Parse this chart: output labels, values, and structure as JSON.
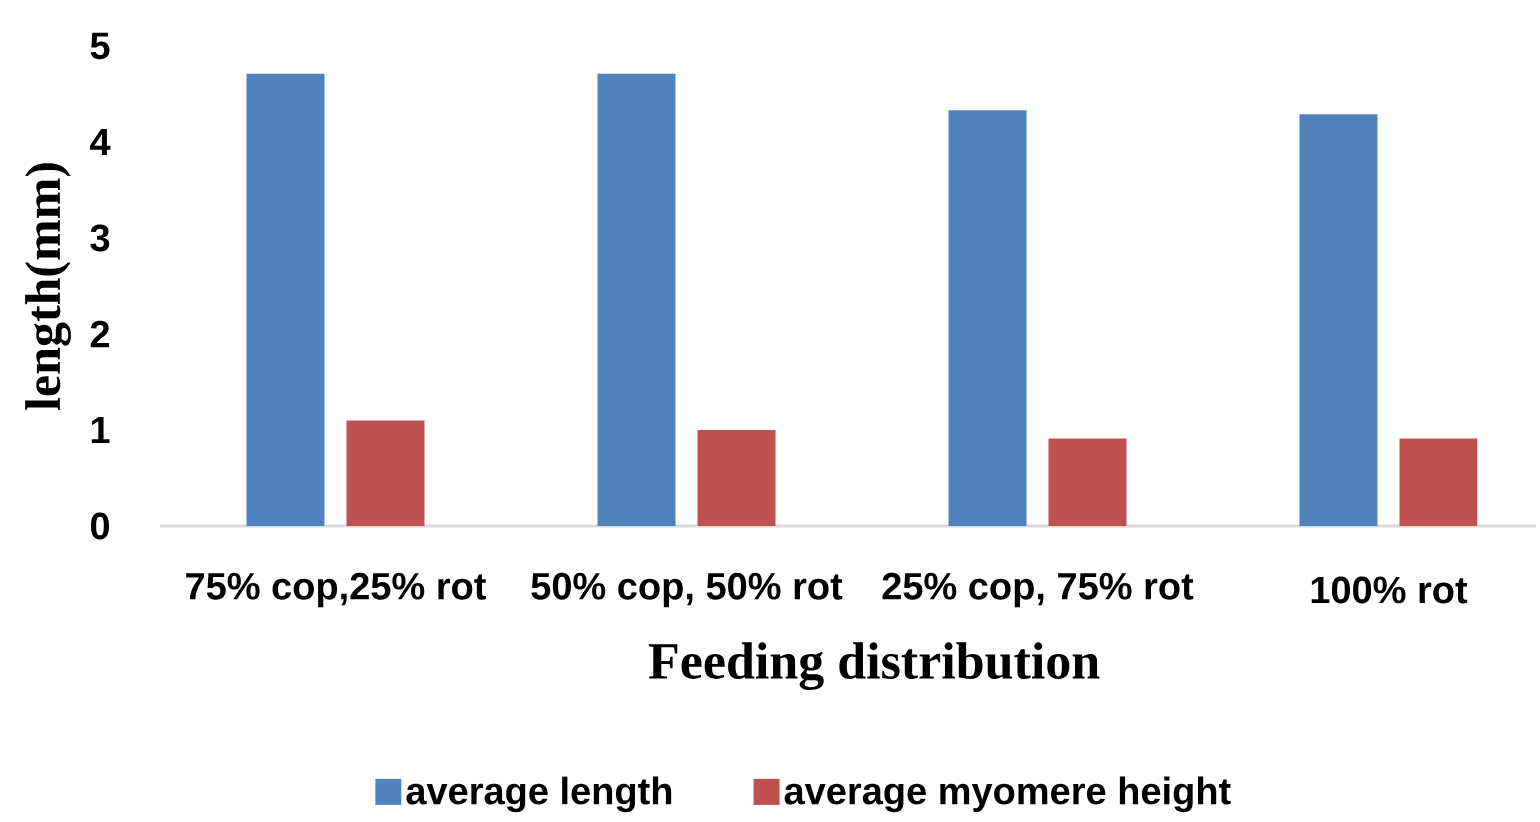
{
  "chart_data": {
    "type": "bar",
    "xlabel": "Feeding distribution",
    "ylabel": "length(mm)",
    "categories": [
      "75% cop,25% rot",
      "50% cop, 50% rot",
      "25% cop, 75% rot",
      "100% rot"
    ],
    "series": [
      {
        "name": "average length",
        "color": "#4f81bd",
        "values": [
          4.71,
          4.71,
          4.33,
          4.29
        ]
      },
      {
        "name": "average myomere height",
        "color": "#c0504d",
        "values": [
          1.1,
          1.0,
          0.91,
          0.91
        ]
      }
    ],
    "ylim": [
      0,
      5
    ],
    "yticks": [
      0,
      1,
      2,
      3,
      4,
      5
    ],
    "grid": false,
    "legend": "bottom"
  }
}
